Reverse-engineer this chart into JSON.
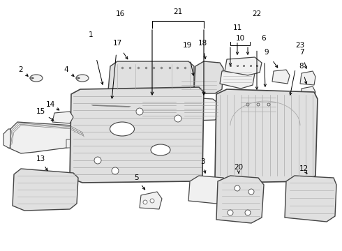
{
  "background_color": "#f5f5f5",
  "line_color": "#333333",
  "text_color": "#000000",
  "fig_width": 4.9,
  "fig_height": 3.6,
  "dpi": 100
}
